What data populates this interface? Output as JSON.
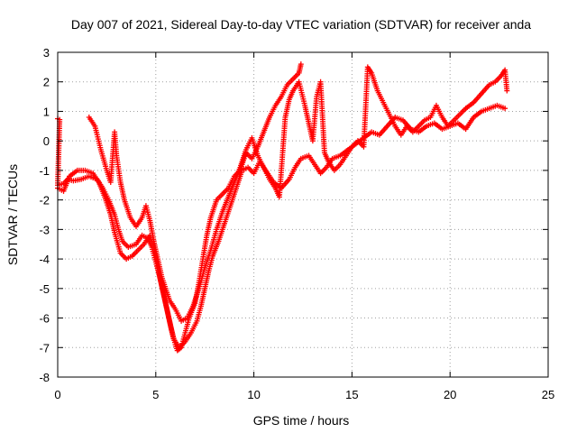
{
  "chart_data": {
    "type": "scatter",
    "title": "Day 007 of 2021, Sidereal Day-to-day VTEC variation (SDTVAR) for receiver anda",
    "xlabel": "GPS time / hours",
    "ylabel": "SDTVAR / TECUs",
    "xlim": [
      0,
      25
    ],
    "ylim": [
      -8,
      3
    ],
    "x_ticks": [
      "0",
      "5",
      "10",
      "15",
      "20",
      "25"
    ],
    "y_ticks": [
      "3",
      "2",
      "1",
      "0",
      "-1",
      "-2",
      "-3",
      "-4",
      "-5",
      "-6",
      "-7",
      "-8"
    ],
    "grid": true,
    "marker": "plus",
    "color": "#ff0000",
    "series": [
      {
        "points": [
          [
            0.0,
            0.75
          ],
          [
            0.1,
            0.72
          ],
          [
            0.0,
            -1.5
          ],
          [
            0.3,
            -1.45
          ],
          [
            0.5,
            -1.3
          ],
          [
            0.8,
            -1.35
          ],
          [
            1.2,
            -1.3
          ],
          [
            1.6,
            -1.2
          ],
          [
            2.0,
            -1.3
          ],
          [
            2.3,
            -1.6
          ],
          [
            2.6,
            -2.0
          ],
          [
            2.9,
            -2.5
          ],
          [
            3.1,
            -3.0
          ],
          [
            3.3,
            -3.4
          ],
          [
            3.6,
            -3.6
          ],
          [
            4.0,
            -3.5
          ],
          [
            4.3,
            -3.2
          ],
          [
            4.6,
            -3.3
          ],
          [
            4.8,
            -3.6
          ],
          [
            5.0,
            -4.1
          ],
          [
            5.2,
            -4.6
          ],
          [
            5.4,
            -5.2
          ],
          [
            5.6,
            -5.8
          ],
          [
            5.8,
            -6.4
          ],
          [
            6.0,
            -6.9
          ],
          [
            6.1,
            -7.1
          ],
          [
            6.3,
            -7.0
          ],
          [
            6.5,
            -6.5
          ],
          [
            6.7,
            -6.0
          ],
          [
            7.0,
            -5.5
          ],
          [
            7.2,
            -4.8
          ],
          [
            7.4,
            -4.0
          ],
          [
            7.6,
            -3.2
          ],
          [
            7.8,
            -2.6
          ],
          [
            8.1,
            -2.0
          ],
          [
            8.4,
            -1.8
          ],
          [
            8.7,
            -1.6
          ],
          [
            9.0,
            -1.2
          ],
          [
            9.3,
            -1.0
          ],
          [
            9.6,
            -0.4
          ],
          [
            9.9,
            -0.6
          ],
          [
            10.2,
            -0.2
          ],
          [
            10.5,
            0.3
          ],
          [
            10.8,
            0.8
          ],
          [
            11.1,
            1.2
          ],
          [
            11.4,
            1.5
          ],
          [
            11.7,
            1.9
          ],
          [
            12.0,
            2.1
          ],
          [
            12.3,
            2.3
          ],
          [
            12.4,
            2.6
          ]
        ]
      },
      {
        "points": [
          [
            0.0,
            -1.6
          ],
          [
            0.3,
            -1.7
          ],
          [
            0.6,
            -1.2
          ],
          [
            1.0,
            -1.0
          ],
          [
            1.4,
            -1.0
          ],
          [
            1.8,
            -1.1
          ],
          [
            2.1,
            -1.4
          ],
          [
            2.4,
            -1.9
          ],
          [
            2.7,
            -2.5
          ],
          [
            2.9,
            -3.1
          ],
          [
            3.2,
            -3.8
          ],
          [
            3.5,
            -4.0
          ],
          [
            3.8,
            -3.9
          ],
          [
            4.1,
            -3.7
          ],
          [
            4.4,
            -3.5
          ],
          [
            4.7,
            -3.2
          ],
          [
            4.9,
            -3.6
          ],
          [
            5.1,
            -4.3
          ],
          [
            5.3,
            -4.9
          ],
          [
            5.5,
            -5.5
          ],
          [
            5.7,
            -6.1
          ],
          [
            5.9,
            -6.7
          ],
          [
            6.2,
            -7.0
          ],
          [
            6.5,
            -6.8
          ],
          [
            6.8,
            -6.5
          ],
          [
            7.1,
            -6.1
          ],
          [
            7.3,
            -5.6
          ],
          [
            7.5,
            -5.0
          ],
          [
            7.7,
            -4.4
          ],
          [
            7.9,
            -3.9
          ],
          [
            8.2,
            -3.4
          ],
          [
            8.5,
            -2.8
          ],
          [
            8.8,
            -2.2
          ],
          [
            9.1,
            -1.6
          ],
          [
            9.4,
            -1.0
          ],
          [
            9.7,
            -0.9
          ],
          [
            10.0,
            -1.1
          ],
          [
            10.3,
            -0.7
          ],
          [
            10.6,
            -1.0
          ],
          [
            11.0,
            -1.4
          ],
          [
            11.4,
            -1.6
          ],
          [
            11.8,
            -1.3
          ],
          [
            12.1,
            -0.9
          ],
          [
            12.4,
            -0.6
          ],
          [
            12.8,
            -0.5
          ],
          [
            13.1,
            -0.8
          ],
          [
            13.4,
            -1.1
          ],
          [
            13.7,
            -0.9
          ],
          [
            14.0,
            -0.6
          ],
          [
            14.4,
            -0.5
          ],
          [
            14.8,
            -0.3
          ],
          [
            15.2,
            -0.1
          ],
          [
            15.6,
            0.1
          ],
          [
            16.0,
            0.3
          ],
          [
            16.4,
            0.2
          ],
          [
            16.8,
            0.5
          ],
          [
            17.2,
            0.8
          ],
          [
            17.6,
            0.7
          ],
          [
            18.0,
            0.4
          ],
          [
            18.4,
            0.3
          ],
          [
            18.8,
            0.5
          ],
          [
            19.2,
            0.6
          ],
          [
            19.6,
            0.4
          ],
          [
            20.0,
            0.5
          ],
          [
            20.4,
            0.6
          ],
          [
            20.8,
            0.4
          ],
          [
            21.2,
            0.8
          ],
          [
            21.6,
            1.0
          ],
          [
            22.0,
            1.1
          ],
          [
            22.4,
            1.2
          ],
          [
            22.8,
            1.1
          ]
        ]
      },
      {
        "points": [
          [
            1.6,
            0.8
          ],
          [
            1.9,
            0.5
          ],
          [
            2.2,
            -0.3
          ],
          [
            2.5,
            -1.0
          ],
          [
            2.7,
            -1.4
          ],
          [
            2.9,
            0.3
          ],
          [
            3.0,
            -0.5
          ],
          [
            3.2,
            -1.4
          ],
          [
            3.4,
            -2.0
          ],
          [
            3.7,
            -2.6
          ],
          [
            4.0,
            -2.9
          ],
          [
            4.3,
            -2.6
          ],
          [
            4.5,
            -2.2
          ],
          [
            4.7,
            -2.7
          ],
          [
            4.9,
            -3.4
          ],
          [
            5.1,
            -4.0
          ],
          [
            5.3,
            -4.6
          ],
          [
            5.5,
            -5.0
          ],
          [
            5.7,
            -5.4
          ],
          [
            6.0,
            -5.7
          ],
          [
            6.3,
            -6.1
          ],
          [
            6.6,
            -6.0
          ],
          [
            6.9,
            -5.6
          ],
          [
            7.2,
            -5.0
          ],
          [
            7.5,
            -4.3
          ],
          [
            7.8,
            -3.7
          ],
          [
            8.1,
            -3.0
          ],
          [
            8.4,
            -2.4
          ],
          [
            8.7,
            -1.9
          ],
          [
            9.0,
            -1.4
          ],
          [
            9.3,
            -0.9
          ],
          [
            9.6,
            -0.3
          ],
          [
            9.9,
            0.1
          ],
          [
            10.2,
            -0.5
          ],
          [
            10.5,
            -0.9
          ],
          [
            10.8,
            -1.3
          ],
          [
            11.1,
            -1.6
          ],
          [
            11.3,
            -1.9
          ],
          [
            11.6,
            0.8
          ],
          [
            11.8,
            1.4
          ],
          [
            12.0,
            1.7
          ],
          [
            12.3,
            2.0
          ],
          [
            12.6,
            1.2
          ],
          [
            12.8,
            0.6
          ],
          [
            13.0,
            0.0
          ],
          [
            13.2,
            1.5
          ],
          [
            13.4,
            2.0
          ],
          [
            13.6,
            -0.4
          ],
          [
            13.8,
            -0.7
          ],
          [
            14.1,
            -1.0
          ],
          [
            14.4,
            -0.8
          ],
          [
            14.7,
            -0.5
          ],
          [
            15.0,
            -0.2
          ],
          [
            15.3,
            0.0
          ],
          [
            15.6,
            -0.2
          ],
          [
            15.8,
            2.5
          ],
          [
            16.0,
            2.3
          ],
          [
            16.3,
            1.7
          ],
          [
            16.6,
            1.3
          ],
          [
            16.9,
            0.9
          ],
          [
            17.2,
            0.5
          ],
          [
            17.5,
            0.2
          ],
          [
            17.8,
            0.5
          ],
          [
            18.1,
            0.3
          ],
          [
            18.4,
            0.5
          ],
          [
            18.7,
            0.7
          ],
          [
            19.0,
            0.8
          ],
          [
            19.3,
            1.2
          ],
          [
            19.6,
            0.8
          ],
          [
            19.9,
            0.5
          ],
          [
            20.2,
            0.7
          ],
          [
            20.5,
            0.9
          ],
          [
            20.8,
            1.1
          ],
          [
            21.2,
            1.3
          ],
          [
            21.6,
            1.6
          ],
          [
            22.0,
            1.9
          ],
          [
            22.3,
            2.0
          ],
          [
            22.6,
            2.2
          ],
          [
            22.8,
            2.4
          ],
          [
            22.9,
            1.7
          ]
        ]
      }
    ]
  }
}
